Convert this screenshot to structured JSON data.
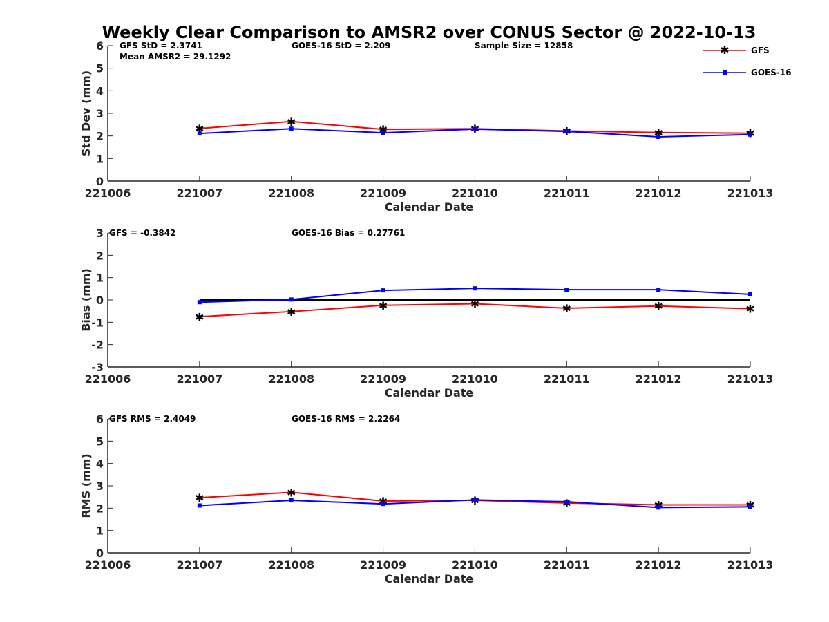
{
  "title": "Weekly Clear Comparison to AMSR2 over CONUS Sector @ 2022-10-13",
  "legend": {
    "position": "top-right"
  },
  "colors": {
    "gfs": "#ff0000",
    "goes16": "#0000ff",
    "zero_line": "#000000",
    "axes": "#262626"
  },
  "chart_data": [
    {
      "type": "line",
      "title": "Weekly Clear Comparison to AMSR2 over CONUS Sector @ 2022-10-13",
      "xlabel": "Calendar Date",
      "ylabel": "Std Dev (mm)",
      "xlim": [
        "221006",
        "221013"
      ],
      "ylim": [
        0,
        6
      ],
      "x_ticks": [
        "221006",
        "221007",
        "221008",
        "221009",
        "221010",
        "221011",
        "221012",
        "221013"
      ],
      "y_ticks": [
        0,
        1,
        2,
        3,
        4,
        5,
        6
      ],
      "grid": false,
      "x": [
        "221007",
        "221008",
        "221009",
        "221010",
        "221011",
        "221012",
        "221013"
      ],
      "series": [
        {
          "name": "GFS",
          "marker": "star",
          "color": "#ff0000",
          "values": [
            2.33,
            2.64,
            2.29,
            2.32,
            2.22,
            2.15,
            2.12
          ]
        },
        {
          "name": "GOES-16",
          "marker": "square",
          "color": "#0000ff",
          "values": [
            2.11,
            2.32,
            2.14,
            2.3,
            2.2,
            1.96,
            2.06
          ]
        }
      ],
      "annotations": [
        "GFS StD = 2.3741",
        "GOES-16 StD = 2.209",
        "Sample Size = 12858",
        "Mean AMSR2 = 29.1292"
      ]
    },
    {
      "type": "line",
      "xlabel": "Calendar Date",
      "ylabel": "Bias (mm)",
      "xlim": [
        "221006",
        "221013"
      ],
      "ylim": [
        -3,
        3
      ],
      "x_ticks": [
        "221006",
        "221007",
        "221008",
        "221009",
        "221010",
        "221011",
        "221012",
        "221013"
      ],
      "y_ticks": [
        -3,
        -2,
        -1,
        0,
        1,
        2,
        3
      ],
      "grid": false,
      "zero_line": true,
      "x": [
        "221007",
        "221008",
        "221009",
        "221010",
        "221011",
        "221012",
        "221013"
      ],
      "series": [
        {
          "name": "GFS",
          "marker": "star",
          "color": "#ff0000",
          "values": [
            -0.75,
            -0.52,
            -0.24,
            -0.17,
            -0.37,
            -0.27,
            -0.39
          ]
        },
        {
          "name": "GOES-16",
          "marker": "square",
          "color": "#0000ff",
          "values": [
            -0.1,
            0.02,
            0.43,
            0.52,
            0.46,
            0.46,
            0.25
          ]
        }
      ],
      "annotations": [
        "GFS = -0.3842",
        "GOES-16 Bias  = 0.27761"
      ]
    },
    {
      "type": "line",
      "xlabel": "Calendar Date",
      "ylabel": "RMS (mm)",
      "xlim": [
        "221006",
        "221013"
      ],
      "ylim": [
        0,
        6
      ],
      "x_ticks": [
        "221006",
        "221007",
        "221008",
        "221009",
        "221010",
        "221011",
        "221012",
        "221013"
      ],
      "y_ticks": [
        0,
        1,
        2,
        3,
        4,
        5,
        6
      ],
      "grid": false,
      "x": [
        "221007",
        "221008",
        "221009",
        "221010",
        "221011",
        "221012",
        "221013"
      ],
      "series": [
        {
          "name": "GFS",
          "marker": "star",
          "color": "#ff0000",
          "values": [
            2.47,
            2.71,
            2.32,
            2.35,
            2.23,
            2.15,
            2.15
          ]
        },
        {
          "name": "GOES-16",
          "marker": "square",
          "color": "#0000ff",
          "values": [
            2.12,
            2.35,
            2.19,
            2.37,
            2.29,
            2.03,
            2.06
          ]
        }
      ],
      "annotations": [
        "GFS RMS = 2.4049",
        "GOES-16 RMS = 2.2264"
      ]
    }
  ]
}
